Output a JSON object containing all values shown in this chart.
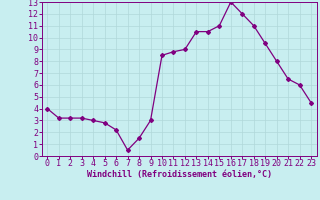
{
  "x": [
    0,
    1,
    2,
    3,
    4,
    5,
    6,
    7,
    8,
    9,
    10,
    11,
    12,
    13,
    14,
    15,
    16,
    17,
    18,
    19,
    20,
    21,
    22,
    23
  ],
  "y": [
    4.0,
    3.2,
    3.2,
    3.2,
    3.0,
    2.8,
    2.2,
    0.5,
    1.5,
    3.0,
    8.5,
    8.8,
    9.0,
    10.5,
    10.5,
    11.0,
    13.0,
    12.0,
    11.0,
    9.5,
    8.0,
    6.5,
    6.0,
    4.5
  ],
  "line_color": "#800080",
  "marker": "D",
  "marker_size": 2.0,
  "bg_color": "#c8eef0",
  "grid_color": "#b0d8da",
  "xlabel": "Windchill (Refroidissement éolien,°C)",
  "xlabel_color": "#800080",
  "tick_color": "#800080",
  "xlim": [
    -0.5,
    23.5
  ],
  "ylim": [
    0,
    13
  ],
  "yticks": [
    0,
    1,
    2,
    3,
    4,
    5,
    6,
    7,
    8,
    9,
    10,
    11,
    12,
    13
  ],
  "xticks": [
    0,
    1,
    2,
    3,
    4,
    5,
    6,
    7,
    8,
    9,
    10,
    11,
    12,
    13,
    14,
    15,
    16,
    17,
    18,
    19,
    20,
    21,
    22,
    23
  ],
  "tick_fontsize": 6.0,
  "xlabel_fontsize": 6.0
}
